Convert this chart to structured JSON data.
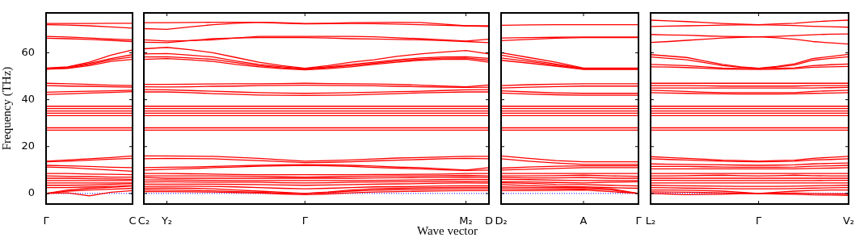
{
  "chart_data": [
    {
      "type": "line",
      "ylabel": "Frequency (THz)",
      "categories": [
        "Γ",
        null,
        null,
        null,
        "C"
      ],
      "ylim": [
        -4.5,
        77
      ],
      "yticks": [
        0,
        20,
        40,
        60
      ],
      "ref_lines": [
        {
          "axis": "y",
          "value": 0,
          "color": "#0000ff",
          "line_style": "dotted"
        }
      ],
      "series": [
        {
          "color": "#ff0000",
          "values": [
            72.5,
            72.5,
            72.5,
            72.6,
            72.6
          ]
        },
        {
          "color": "#ff0000",
          "values": [
            72,
            71.8,
            71.5,
            71,
            70.5
          ]
        },
        {
          "color": "#ff0000",
          "values": [
            67,
            66.7,
            66.3,
            65.9,
            65.5
          ]
        },
        {
          "color": "#ff0000",
          "values": [
            66.2,
            66,
            65.7,
            65.3,
            64.8
          ]
        },
        {
          "color": "#ff0000",
          "values": [
            53.5,
            54,
            56,
            59,
            61.2
          ]
        },
        {
          "color": "#ff0000",
          "values": [
            53.3,
            53.8,
            55.5,
            57.5,
            59.2
          ]
        },
        {
          "color": "#ff0000",
          "values": [
            53.1,
            53.5,
            55,
            57,
            58.2
          ]
        },
        {
          "color": "#ff0000",
          "values": [
            53,
            53.3,
            54.5,
            56.3,
            57.2
          ]
        },
        {
          "color": "#ff0000",
          "values": [
            47,
            46.8,
            46.5,
            46.2,
            46
          ]
        },
        {
          "color": "#ff0000",
          "values": [
            46,
            45.8,
            45.7,
            45.5,
            45.3
          ]
        },
        {
          "color": "#ff0000",
          "values": [
            43.2,
            43.4,
            43.6,
            43.8,
            44
          ]
        },
        {
          "color": "#ff0000",
          "values": [
            42.2,
            42.5,
            42.8,
            43.1,
            43.4
          ]
        },
        {
          "color": "#ff0000",
          "values": [
            37.2,
            37.2,
            37.2,
            37.2,
            37.2
          ]
        },
        {
          "color": "#ff0000",
          "values": [
            36.2,
            36.2,
            36.2,
            36.2,
            36.2
          ]
        },
        {
          "color": "#ff0000",
          "values": [
            35.2,
            35.2,
            35.2,
            35.2,
            35.2
          ]
        },
        {
          "color": "#ff0000",
          "values": [
            34.2,
            34.2,
            34.2,
            34.2,
            34.2
          ]
        },
        {
          "color": "#ff0000",
          "values": [
            33.2,
            33.2,
            33.2,
            33.2,
            33.2
          ]
        },
        {
          "color": "#ff0000",
          "values": [
            28,
            28,
            28,
            28,
            28
          ]
        },
        {
          "color": "#ff0000",
          "values": [
            27,
            27,
            27,
            27,
            27
          ]
        },
        {
          "color": "#ff0000",
          "values": [
            13.8,
            14.3,
            14.8,
            15.3,
            16
          ]
        },
        {
          "color": "#ff0000",
          "values": [
            13.5,
            13.8,
            14.2,
            14.6,
            15
          ]
        },
        {
          "color": "#ff0000",
          "values": [
            12,
            11.8,
            11.5,
            11.2,
            11
          ]
        },
        {
          "color": "#ff0000",
          "values": [
            11.3,
            11,
            10.5,
            10,
            9.5
          ]
        },
        {
          "color": "#ff0000",
          "values": [
            8.5,
            8.5,
            8.3,
            8.2,
            8
          ]
        },
        {
          "color": "#ff0000",
          "values": [
            7.5,
            7.3,
            7.2,
            7,
            7
          ]
        },
        {
          "color": "#ff0000",
          "values": [
            6.5,
            6.5,
            6.3,
            6.2,
            6
          ]
        },
        {
          "color": "#ff0000",
          "values": [
            5.5,
            5.5,
            5.5,
            5.5,
            5.5
          ]
        },
        {
          "color": "#ff0000",
          "values": [
            4.5,
            4.5,
            4.5,
            4.5,
            4.5
          ]
        },
        {
          "color": "#ff0000",
          "values": [
            3.5,
            3.5,
            3.6,
            3.9,
            4.2
          ]
        },
        {
          "color": "#ff0000",
          "values": [
            2.5,
            2.5,
            2.8,
            3,
            3.4
          ]
        },
        {
          "color": "#ff0000",
          "values": [
            0,
            1.5,
            2.2,
            2.6,
            3.2
          ]
        },
        {
          "color": "#ff0000",
          "values": [
            0,
            1,
            1.5,
            1.8,
            2.2
          ]
        },
        {
          "color": "#ff0000",
          "values": [
            0,
            0.3,
            -1,
            0.5,
            1.2
          ]
        }
      ]
    },
    {
      "type": "line",
      "xlabel": "Wave vector",
      "tick_labels": "x",
      "categories": [
        "C₂",
        "Y₂",
        null,
        null,
        null,
        null,
        null,
        "Γ",
        null,
        null,
        null,
        null,
        null,
        null,
        "M₂",
        "D"
      ],
      "ylim": [
        -4.5,
        77
      ],
      "yticks": [
        0,
        20,
        40,
        60
      ],
      "ref_lines": [
        {
          "axis": "y",
          "value": 0,
          "color": "#0000ff",
          "line_style": "dotted"
        }
      ],
      "series": [
        {
          "color": "#ff0000",
          "values": [
            72.8,
            72.8,
            72.9,
            73,
            73,
            73,
            72.8,
            72.5,
            72.6,
            72.8,
            72.9,
            73,
            72.9,
            72.2,
            71.5,
            71.5
          ]
        },
        {
          "color": "#ff0000",
          "values": [
            70.3,
            70,
            71,
            72,
            72.6,
            73,
            72.6,
            72.3,
            72.4,
            72.5,
            72.4,
            72.2,
            72,
            71.7,
            71.5,
            71.2
          ]
        },
        {
          "color": "#ff0000",
          "values": [
            65.5,
            65,
            65.2,
            65.5,
            66.3,
            67,
            67,
            67,
            67,
            67,
            66.8,
            66.4,
            66,
            65.5,
            65,
            65.8
          ]
        },
        {
          "color": "#ff0000",
          "values": [
            64.5,
            64.3,
            65.2,
            66,
            66.3,
            66.5,
            66.5,
            66.5,
            66.3,
            66,
            65.9,
            65.7,
            65.5,
            65.2,
            64.8,
            64.3
          ]
        },
        {
          "color": "#ff0000",
          "values": [
            61.7,
            62.3,
            61.3,
            60,
            58,
            56,
            54.5,
            53.4,
            54.5,
            56,
            57,
            58.5,
            59.5,
            60.3,
            61,
            59.5
          ]
        },
        {
          "color": "#ff0000",
          "values": [
            59.5,
            59.7,
            59,
            58.2,
            56.5,
            55,
            54,
            53.2,
            54,
            55,
            56,
            57,
            57.8,
            58.2,
            58.3,
            57.6
          ]
        },
        {
          "color": "#ff0000",
          "values": [
            58.2,
            58.3,
            57.8,
            57.2,
            55.8,
            54.5,
            53.6,
            53,
            53.7,
            54.5,
            55.5,
            56.5,
            57.3,
            57.7,
            57.8,
            56.8
          ]
        },
        {
          "color": "#ff0000",
          "values": [
            57.2,
            57.5,
            57,
            56.3,
            55,
            54,
            53.2,
            52.7,
            53.2,
            54,
            55,
            56,
            56.8,
            57.2,
            57.3,
            56
          ]
        },
        {
          "color": "#ff0000",
          "values": [
            46.5,
            46.5,
            46.6,
            46.7,
            46.8,
            46.8,
            46.9,
            47,
            46.9,
            46.8,
            46.7,
            46.5,
            46.2,
            45.8,
            45.5,
            46.3
          ]
        },
        {
          "color": "#ff0000",
          "values": [
            45.5,
            45.4,
            45.5,
            45.7,
            45.8,
            46,
            46.1,
            46.2,
            46.1,
            46,
            45.9,
            45.7,
            45.5,
            45.3,
            45.2,
            45.3
          ]
        },
        {
          "color": "#ff0000",
          "values": [
            44.3,
            44.2,
            43.9,
            43.6,
            43.3,
            43,
            42.8,
            42.7,
            42.8,
            43,
            43.2,
            43.4,
            43.6,
            43.9,
            44.2,
            44.3
          ]
        },
        {
          "color": "#ff0000",
          "values": [
            43.3,
            43.3,
            43,
            42.6,
            42.3,
            42,
            41.9,
            41.8,
            41.9,
            42,
            42.3,
            42.6,
            42.9,
            43.1,
            43.3,
            43.3
          ]
        },
        {
          "color": "#ff0000",
          "values": [
            37.2,
            37.2,
            37.2,
            37.2,
            37.2,
            37.2,
            37.2,
            37.2,
            37.2,
            37.2,
            37.2,
            37.2,
            37.2,
            37.2,
            37.2,
            37.2
          ]
        },
        {
          "color": "#ff0000",
          "values": [
            36.2,
            36.2,
            36.2,
            36.2,
            36.2,
            36.2,
            36.2,
            36.2,
            36.2,
            36.2,
            36.2,
            36.2,
            36.2,
            36.2,
            36.2,
            36.2
          ]
        },
        {
          "color": "#ff0000",
          "values": [
            35.2,
            35.2,
            35.2,
            35.2,
            35.2,
            35.2,
            35.2,
            35.2,
            35.2,
            35.2,
            35.2,
            35.2,
            35.2,
            35.2,
            35.2,
            35.2
          ]
        },
        {
          "color": "#ff0000",
          "values": [
            34.2,
            34.2,
            34.2,
            34.2,
            34.2,
            34.2,
            34.2,
            34.2,
            34.2,
            34.2,
            34.2,
            34.2,
            34.2,
            34.2,
            34.2,
            34.2
          ]
        },
        {
          "color": "#ff0000",
          "values": [
            33.2,
            33.2,
            33.2,
            33.2,
            33.2,
            33.2,
            33.2,
            33.2,
            33.2,
            33.2,
            33.2,
            33.2,
            33.2,
            33.2,
            33.2,
            33.2
          ]
        },
        {
          "color": "#ff0000",
          "values": [
            28,
            28,
            28,
            28,
            28,
            28,
            28,
            28,
            28,
            28,
            28,
            28,
            28,
            28,
            28,
            28
          ]
        },
        {
          "color": "#ff0000",
          "values": [
            27,
            27,
            27,
            27,
            27,
            27,
            27,
            27,
            27,
            27,
            27,
            27,
            27,
            27,
            27,
            27
          ]
        },
        {
          "color": "#ff0000",
          "values": [
            16,
            16,
            15.9,
            15.8,
            15.4,
            15,
            14.4,
            13.8,
            14,
            14.3,
            14.7,
            15.1,
            15.3,
            15.6,
            15.8,
            15.8
          ]
        },
        {
          "color": "#ff0000",
          "values": [
            14.8,
            15,
            14.9,
            14.8,
            14.4,
            14,
            13.6,
            13.2,
            13.3,
            13.5,
            13.9,
            14.2,
            14.5,
            14.8,
            15,
            14.8
          ]
        },
        {
          "color": "#ff0000",
          "values": [
            11,
            11.2,
            11.3,
            11.5,
            11.8,
            12,
            12.2,
            12.3,
            12.2,
            12,
            11.7,
            11.3,
            11,
            10.5,
            10,
            11
          ]
        },
        {
          "color": "#ff0000",
          "values": [
            10,
            10.3,
            10.6,
            11,
            11.3,
            11.6,
            11.8,
            12,
            11.8,
            11.5,
            11.1,
            10.8,
            10.5,
            10.1,
            9.8,
            10
          ]
        },
        {
          "color": "#ff0000",
          "values": [
            8.5,
            8.5,
            8.4,
            8.3,
            8.1,
            8,
            8,
            8,
            8,
            8,
            8.1,
            8.1,
            8.2,
            8.3,
            8.5,
            8.5
          ]
        },
        {
          "color": "#ff0000",
          "values": [
            7.5,
            7.5,
            7.5,
            7.5,
            7.4,
            7.3,
            7.1,
            7,
            7.1,
            7.3,
            7.4,
            7.5,
            7.5,
            7.6,
            7.7,
            7.5
          ]
        },
        {
          "color": "#ff0000",
          "values": [
            6.8,
            6.5,
            6.5,
            6.5,
            6.5,
            6.5,
            6.5,
            6.5,
            6.5,
            6.5,
            6.6,
            6.7,
            6.8,
            6.9,
            7,
            6.8
          ]
        },
        {
          "color": "#ff0000",
          "values": [
            5.8,
            5.8,
            5.7,
            5.6,
            5.5,
            5.5,
            5.5,
            5.5,
            5.5,
            5.5,
            5.6,
            5.7,
            5.8,
            5.9,
            6,
            5.9
          ]
        },
        {
          "color": "#ff0000",
          "values": [
            4.9,
            5,
            4.9,
            4.8,
            4.8,
            4.8,
            4.6,
            4.5,
            4.6,
            4.8,
            4.9,
            5,
            5,
            5.1,
            5.2,
            5
          ]
        },
        {
          "color": "#ff0000",
          "values": [
            4,
            4,
            4,
            4,
            3.9,
            3.8,
            3.6,
            3.5,
            3.6,
            3.8,
            4,
            4.1,
            4.2,
            4.4,
            4.5,
            4.4
          ]
        },
        {
          "color": "#ff0000",
          "values": [
            3,
            3.1,
            3.1,
            3,
            2.8,
            2.5,
            2.2,
            2,
            2.2,
            2.5,
            2.8,
            2.9,
            3,
            3.2,
            3.3,
            3.3
          ]
        },
        {
          "color": "#ff0000",
          "values": [
            2.2,
            2.3,
            2.2,
            2,
            1.5,
            1,
            0.5,
            0,
            0.6,
            1.5,
            2,
            2.2,
            2.4,
            2.5,
            2.6,
            2.6
          ]
        },
        {
          "color": "#ff0000",
          "values": [
            1.5,
            1.5,
            1.3,
            1.1,
            0.8,
            0.5,
            0.2,
            0,
            0.4,
            1,
            1.4,
            1.6,
            1.8,
            1.9,
            2,
            2
          ]
        },
        {
          "color": "#ff0000",
          "values": [
            0.8,
            0.8,
            0.7,
            0.6,
            0.4,
            0.2,
            -0.2,
            -0.5,
            -0.2,
            0.3,
            0.6,
            0.8,
            1,
            1.1,
            1.2,
            1.2
          ]
        }
      ]
    },
    {
      "type": "line",
      "tick_labels": "x",
      "categories": [
        "D₂",
        null,
        null,
        "A",
        null,
        "Γ"
      ],
      "ylim": [
        -4.5,
        77
      ],
      "yticks": [
        0,
        20,
        40,
        60
      ],
      "ref_lines": [
        {
          "axis": "y",
          "value": 0,
          "color": "#0000ff",
          "line_style": "dotted"
        }
      ],
      "series": [
        {
          "color": "#ff0000",
          "values": [
            71.7,
            71.9,
            72,
            72,
            72,
            72
          ]
        },
        {
          "color": "#ff0000",
          "values": [
            66.3,
            66.5,
            66.6,
            66.7,
            66.7,
            66.7
          ]
        },
        {
          "color": "#ff0000",
          "values": [
            65.2,
            65.7,
            66.2,
            66.5,
            66.5,
            66.5
          ]
        },
        {
          "color": "#ff0000",
          "values": [
            60,
            58,
            56,
            53.5,
            53.5,
            53.5
          ]
        },
        {
          "color": "#ff0000",
          "values": [
            59,
            57,
            55.2,
            53.3,
            53.3,
            53.3
          ]
        },
        {
          "color": "#ff0000",
          "values": [
            57.8,
            56.3,
            54.8,
            53.1,
            53.1,
            53.1
          ]
        },
        {
          "color": "#ff0000",
          "values": [
            56.8,
            55.6,
            54.3,
            52.9,
            52.9,
            52.9
          ]
        },
        {
          "color": "#ff0000",
          "values": [
            46,
            46.4,
            46.6,
            46.8,
            46.8,
            46.8
          ]
        },
        {
          "color": "#ff0000",
          "values": [
            45,
            45.3,
            45.6,
            45.8,
            45.8,
            45.8
          ]
        },
        {
          "color": "#ff0000",
          "values": [
            43.8,
            43.3,
            42.9,
            42.7,
            42.7,
            42.7
          ]
        },
        {
          "color": "#ff0000",
          "values": [
            42.8,
            42.4,
            42.1,
            41.9,
            41.9,
            41.9
          ]
        },
        {
          "color": "#ff0000",
          "values": [
            37.2,
            37.2,
            37.2,
            37.2,
            37.2,
            37.2
          ]
        },
        {
          "color": "#ff0000",
          "values": [
            36.2,
            36.2,
            36.2,
            36.2,
            36.2,
            36.2
          ]
        },
        {
          "color": "#ff0000",
          "values": [
            35.2,
            35.2,
            35.2,
            35.2,
            35.2,
            35.2
          ]
        },
        {
          "color": "#ff0000",
          "values": [
            34.2,
            34.2,
            34.2,
            34.2,
            34.2,
            34.2
          ]
        },
        {
          "color": "#ff0000",
          "values": [
            33.2,
            33.2,
            33.2,
            33.2,
            33.2,
            33.2
          ]
        },
        {
          "color": "#ff0000",
          "values": [
            28,
            28,
            28,
            28,
            28,
            28
          ]
        },
        {
          "color": "#ff0000",
          "values": [
            27,
            27,
            27,
            27,
            27,
            27
          ]
        },
        {
          "color": "#ff0000",
          "values": [
            16,
            15,
            14,
            13.5,
            13.5,
            13.5
          ]
        },
        {
          "color": "#ff0000",
          "values": [
            14.8,
            13.8,
            13,
            12.4,
            12.4,
            12.4
          ]
        },
        {
          "color": "#ff0000",
          "values": [
            10.8,
            11.3,
            11.6,
            11.8,
            11.8,
            11.8
          ]
        },
        {
          "color": "#ff0000",
          "values": [
            10,
            10.3,
            10.7,
            11,
            11,
            11
          ]
        },
        {
          "color": "#ff0000",
          "values": [
            8.5,
            8.5,
            8.5,
            8.5,
            8.5,
            8.5
          ]
        },
        {
          "color": "#ff0000",
          "values": [
            7.5,
            7.5,
            7.6,
            7.8,
            7.5,
            7.3
          ]
        },
        {
          "color": "#ff0000",
          "values": [
            6.8,
            6.6,
            6.6,
            6.8,
            6.5,
            6.5
          ]
        },
        {
          "color": "#ff0000",
          "values": [
            6,
            5.9,
            5.7,
            5.5,
            5.5,
            5.5
          ]
        },
        {
          "color": "#ff0000",
          "values": [
            5,
            4.9,
            4.7,
            4.5,
            4.8,
            5
          ]
        },
        {
          "color": "#ff0000",
          "values": [
            4.6,
            4.3,
            3.9,
            3.8,
            3.5,
            3.2
          ]
        },
        {
          "color": "#ff0000",
          "values": [
            3.8,
            3.4,
            3,
            2.8,
            2.5,
            2.2
          ]
        },
        {
          "color": "#ff0000",
          "values": [
            2.8,
            2.6,
            2.5,
            2.5,
            2,
            0
          ]
        },
        {
          "color": "#ff0000",
          "values": [
            2,
            1.9,
            1.9,
            2,
            1.5,
            0
          ]
        },
        {
          "color": "#ff0000",
          "values": [
            1.2,
            1.2,
            1.3,
            1.5,
            0.8,
            0
          ]
        }
      ]
    },
    {
      "type": "line",
      "tick_labels": "x",
      "categories": [
        "L₂",
        null,
        null,
        null,
        null,
        null,
        "Γ",
        null,
        null,
        null,
        null,
        "V₂"
      ],
      "ylim": [
        -4.5,
        77
      ],
      "yticks": [
        0,
        20,
        40,
        60
      ],
      "ref_lines": [
        {
          "axis": "y",
          "value": 0,
          "color": "#0000ff",
          "line_style": "dotted"
        }
      ],
      "series": [
        {
          "color": "#ff0000",
          "values": [
            73.9,
            73.6,
            73.3,
            72.9,
            72.5,
            72.2,
            72,
            72.3,
            72.6,
            73.2,
            73.6,
            73.9
          ]
        },
        {
          "color": "#ff0000",
          "values": [
            71.2,
            71.4,
            71.5,
            71.6,
            71.8,
            71.9,
            72,
            71.8,
            71.6,
            71.3,
            71.1,
            70.9
          ]
        },
        {
          "color": "#ff0000",
          "values": [
            67.8,
            67.6,
            67.5,
            67.2,
            67,
            66.9,
            66.8,
            67,
            67.3,
            67.7,
            67.9,
            68
          ]
        },
        {
          "color": "#ff0000",
          "values": [
            64.4,
            64.8,
            65.3,
            65.8,
            66.3,
            66.6,
            66.8,
            66.4,
            65.8,
            64.8,
            64.2,
            63.7
          ]
        },
        {
          "color": "#ff0000",
          "values": [
            59.2,
            58.6,
            58,
            56.5,
            55,
            54,
            53.4,
            54.2,
            55.3,
            57.5,
            58.4,
            59.3
          ]
        },
        {
          "color": "#ff0000",
          "values": [
            58.2,
            57.6,
            57,
            55.8,
            54.5,
            53.8,
            53.3,
            53.9,
            54.8,
            56.8,
            57.6,
            58.3
          ]
        },
        {
          "color": "#ff0000",
          "values": [
            55,
            54.8,
            54.5,
            54,
            53.5,
            53.3,
            53.2,
            53.4,
            53.6,
            54.5,
            54.9,
            55.2
          ]
        },
        {
          "color": "#ff0000",
          "values": [
            54,
            53.9,
            53.7,
            53.4,
            53.1,
            53,
            52.9,
            53,
            53.2,
            53.8,
            54,
            54.2
          ]
        },
        {
          "color": "#ff0000",
          "values": [
            47,
            47,
            47,
            47,
            47,
            47,
            47,
            47,
            47,
            47,
            47,
            47
          ]
        },
        {
          "color": "#ff0000",
          "values": [
            46,
            46,
            46,
            45.9,
            45.8,
            45.8,
            45.8,
            45.8,
            45.8,
            46,
            46,
            46
          ]
        },
        {
          "color": "#ff0000",
          "values": [
            45,
            45,
            45,
            45,
            45,
            45,
            45,
            45,
            45,
            45,
            45.1,
            45.2
          ]
        },
        {
          "color": "#ff0000",
          "values": [
            44,
            43.8,
            43.5,
            43.2,
            43,
            43,
            43,
            43,
            43,
            43.5,
            43.8,
            44
          ]
        },
        {
          "color": "#ff0000",
          "values": [
            43,
            42.8,
            42.7,
            42.6,
            42.5,
            42.4,
            42.4,
            42.4,
            42.5,
            42.7,
            42.8,
            43
          ]
        },
        {
          "color": "#ff0000",
          "values": [
            37.2,
            37.2,
            37.2,
            37.2,
            37.2,
            37.2,
            37.2,
            37.2,
            37.2,
            37.2,
            37.2,
            37.2
          ]
        },
        {
          "color": "#ff0000",
          "values": [
            36.2,
            36.2,
            36.2,
            36.2,
            36.2,
            36.2,
            36.2,
            36.2,
            36.2,
            36.2,
            36.2,
            36.2
          ]
        },
        {
          "color": "#ff0000",
          "values": [
            35.2,
            35.2,
            35.2,
            35.2,
            35.2,
            35.2,
            35.2,
            35.2,
            35.2,
            35.2,
            35.2,
            35.2
          ]
        },
        {
          "color": "#ff0000",
          "values": [
            34.2,
            34.2,
            34.2,
            34.2,
            34.2,
            34.2,
            34.2,
            34.2,
            34.2,
            34.2,
            34.2,
            34.2
          ]
        },
        {
          "color": "#ff0000",
          "values": [
            33.2,
            33.2,
            33.2,
            33.2,
            33.2,
            33.2,
            33.2,
            33.2,
            33.2,
            33.2,
            33.2,
            33.2
          ]
        },
        {
          "color": "#ff0000",
          "values": [
            28,
            28,
            28,
            28,
            28,
            28,
            28,
            28,
            28,
            28,
            28,
            28
          ]
        },
        {
          "color": "#ff0000",
          "values": [
            27,
            27,
            27,
            27,
            27,
            27,
            27,
            27,
            27,
            27,
            27,
            27
          ]
        },
        {
          "color": "#ff0000",
          "values": [
            15.7,
            15.3,
            15,
            14.6,
            14.2,
            14,
            13.8,
            14,
            14.2,
            15,
            15.4,
            15.8
          ]
        },
        {
          "color": "#ff0000",
          "values": [
            14.8,
            14.5,
            14.3,
            14,
            13.8,
            13.6,
            13.5,
            13.6,
            13.8,
            14.3,
            14.5,
            14.8
          ]
        },
        {
          "color": "#ff0000",
          "values": [
            12.6,
            12.5,
            12.4,
            12.3,
            12.2,
            12.1,
            12,
            12.1,
            12.2,
            12.6,
            12.8,
            13
          ]
        },
        {
          "color": "#ff0000",
          "values": [
            11.5,
            11.5,
            11.5,
            11.4,
            11.3,
            11.2,
            11.2,
            11.2,
            11.3,
            11.6,
            11.8,
            12
          ]
        },
        {
          "color": "#ff0000",
          "values": [
            10.5,
            10.5,
            10.5,
            10.5,
            10.5,
            10.5,
            10.5,
            10.5,
            10.5,
            10.7,
            10.8,
            11
          ]
        },
        {
          "color": "#ff0000",
          "values": [
            8.5,
            8.5,
            8.5,
            8.5,
            8.5,
            8.5,
            8.5,
            8.5,
            8.5,
            8.5,
            8.5,
            8.5
          ]
        },
        {
          "color": "#ff0000",
          "values": [
            7.5,
            7.5,
            7.6,
            7.7,
            7.8,
            7.6,
            7.5,
            7.6,
            7.8,
            7.6,
            7.5,
            7.5
          ]
        },
        {
          "color": "#ff0000",
          "values": [
            6.5,
            6.5,
            6.5,
            6.5,
            6.5,
            6.5,
            6.5,
            6.5,
            6.5,
            6.5,
            6.5,
            6.5
          ]
        },
        {
          "color": "#ff0000",
          "values": [
            5.6,
            5.6,
            5.5,
            5.5,
            5.5,
            5.5,
            5.5,
            5.5,
            5.5,
            5.5,
            5.6,
            5.6
          ]
        },
        {
          "color": "#ff0000",
          "values": [
            4.5,
            4.5,
            4.5,
            4.5,
            4.5,
            4.5,
            4.5,
            4.5,
            4.5,
            4.5,
            4.5,
            4.5
          ]
        },
        {
          "color": "#ff0000",
          "values": [
            3.5,
            3.4,
            3.3,
            3.2,
            3.1,
            3,
            3,
            3,
            3.1,
            3.3,
            3.4,
            3.5
          ]
        },
        {
          "color": "#ff0000",
          "values": [
            2.5,
            2.4,
            2.3,
            2.2,
            2.1,
            2,
            2,
            2,
            2.1,
            2.3,
            2.4,
            2.5
          ]
        },
        {
          "color": "#ff0000",
          "values": [
            1.5,
            1.5,
            1.4,
            1.2,
            1,
            0.5,
            0,
            0.5,
            1,
            1.3,
            1.5,
            1.5
          ]
        },
        {
          "color": "#ff0000",
          "values": [
            0.7,
            0.6,
            0.5,
            0.4,
            0.3,
            0.2,
            0,
            0.1,
            0.2,
            0,
            -0.1,
            -0.2
          ]
        },
        {
          "color": "#ff0000",
          "values": [
            0,
            -0.2,
            -0.5,
            -0.4,
            -0.3,
            -0.1,
            0,
            -0.2,
            -0.3,
            -0.6,
            -0.7,
            -0.8
          ]
        }
      ]
    }
  ]
}
